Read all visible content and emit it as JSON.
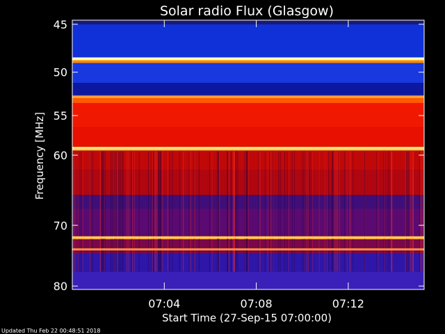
{
  "chart_data": {
    "type": "heatmap",
    "title": "Solar radio Flux (Glasgow)",
    "xlabel": "Start Time (27-Sep-15 07:00:00)",
    "ylabel": "Frequency [MHz]",
    "x_range_minutes": [
      0,
      15.3
    ],
    "x_ticks": [
      {
        "minute": 4,
        "label": "07:04"
      },
      {
        "minute": 8,
        "label": "07:08"
      },
      {
        "minute": 12,
        "label": "07:12"
      }
    ],
    "ylim": [
      80,
      45
    ],
    "y_scale": "log",
    "y_ticks": [
      {
        "mhz": 45,
        "label": "45"
      },
      {
        "mhz": 50,
        "label": "50"
      },
      {
        "mhz": 55,
        "label": "55"
      },
      {
        "mhz": 60,
        "label": "60"
      },
      {
        "mhz": 70,
        "label": "70"
      },
      {
        "mhz": 80,
        "label": "80"
      }
    ],
    "bands": [
      {
        "lo": 44.6,
        "hi": 45.0,
        "color": "#1a1a70"
      },
      {
        "lo": 45.0,
        "hi": 48.4,
        "color": "#1030d8"
      },
      {
        "lo": 48.4,
        "hi": 48.7,
        "color": "#ffffa0"
      },
      {
        "lo": 48.7,
        "hi": 49.0,
        "color": "#ff8c00"
      },
      {
        "lo": 49.0,
        "hi": 51.2,
        "color": "#1838e0"
      },
      {
        "lo": 51.2,
        "hi": 52.6,
        "color": "#0c18a0"
      },
      {
        "lo": 52.6,
        "hi": 53.5,
        "color": "#ff5a00"
      },
      {
        "lo": 53.5,
        "hi": 56.5,
        "color": "#f01800"
      },
      {
        "lo": 56.5,
        "hi": 58.9,
        "color": "#e81000"
      },
      {
        "lo": 58.9,
        "hi": 59.4,
        "color": "#ffc040"
      },
      {
        "lo": 59.4,
        "hi": 62.0,
        "color": "#c00808"
      },
      {
        "lo": 62.0,
        "hi": 65.5,
        "color": "#b00610"
      },
      {
        "lo": 65.5,
        "hi": 67.5,
        "color": "#400e78"
      },
      {
        "lo": 67.5,
        "hi": 71.7,
        "color": "#5a0a70"
      },
      {
        "lo": 71.7,
        "hi": 72.2,
        "color": "#ff8c20"
      },
      {
        "lo": 72.2,
        "hi": 74.5,
        "color": "#7a0848"
      },
      {
        "lo": 74.5,
        "hi": 77.5,
        "color": "#2e16a8"
      },
      {
        "lo": 77.5,
        "hi": 80.6,
        "color": "#3a20b8"
      }
    ],
    "bright_lines": [
      {
        "mhz": 48.55,
        "color": "#ffffc0"
      },
      {
        "mhz": 52.8,
        "color": "#ffa040"
      },
      {
        "mhz": 59.1,
        "color": "#ffe070"
      },
      {
        "mhz": 71.9,
        "color": "#ffd060"
      },
      {
        "mhz": 73.8,
        "color": "#ff9040"
      }
    ]
  },
  "footer": {
    "updated_text": "Updated Thu Feb 22 00:48:51 2018"
  },
  "colors": {
    "background": "#000000",
    "text": "#ffffff",
    "axis": "#ffffff"
  }
}
